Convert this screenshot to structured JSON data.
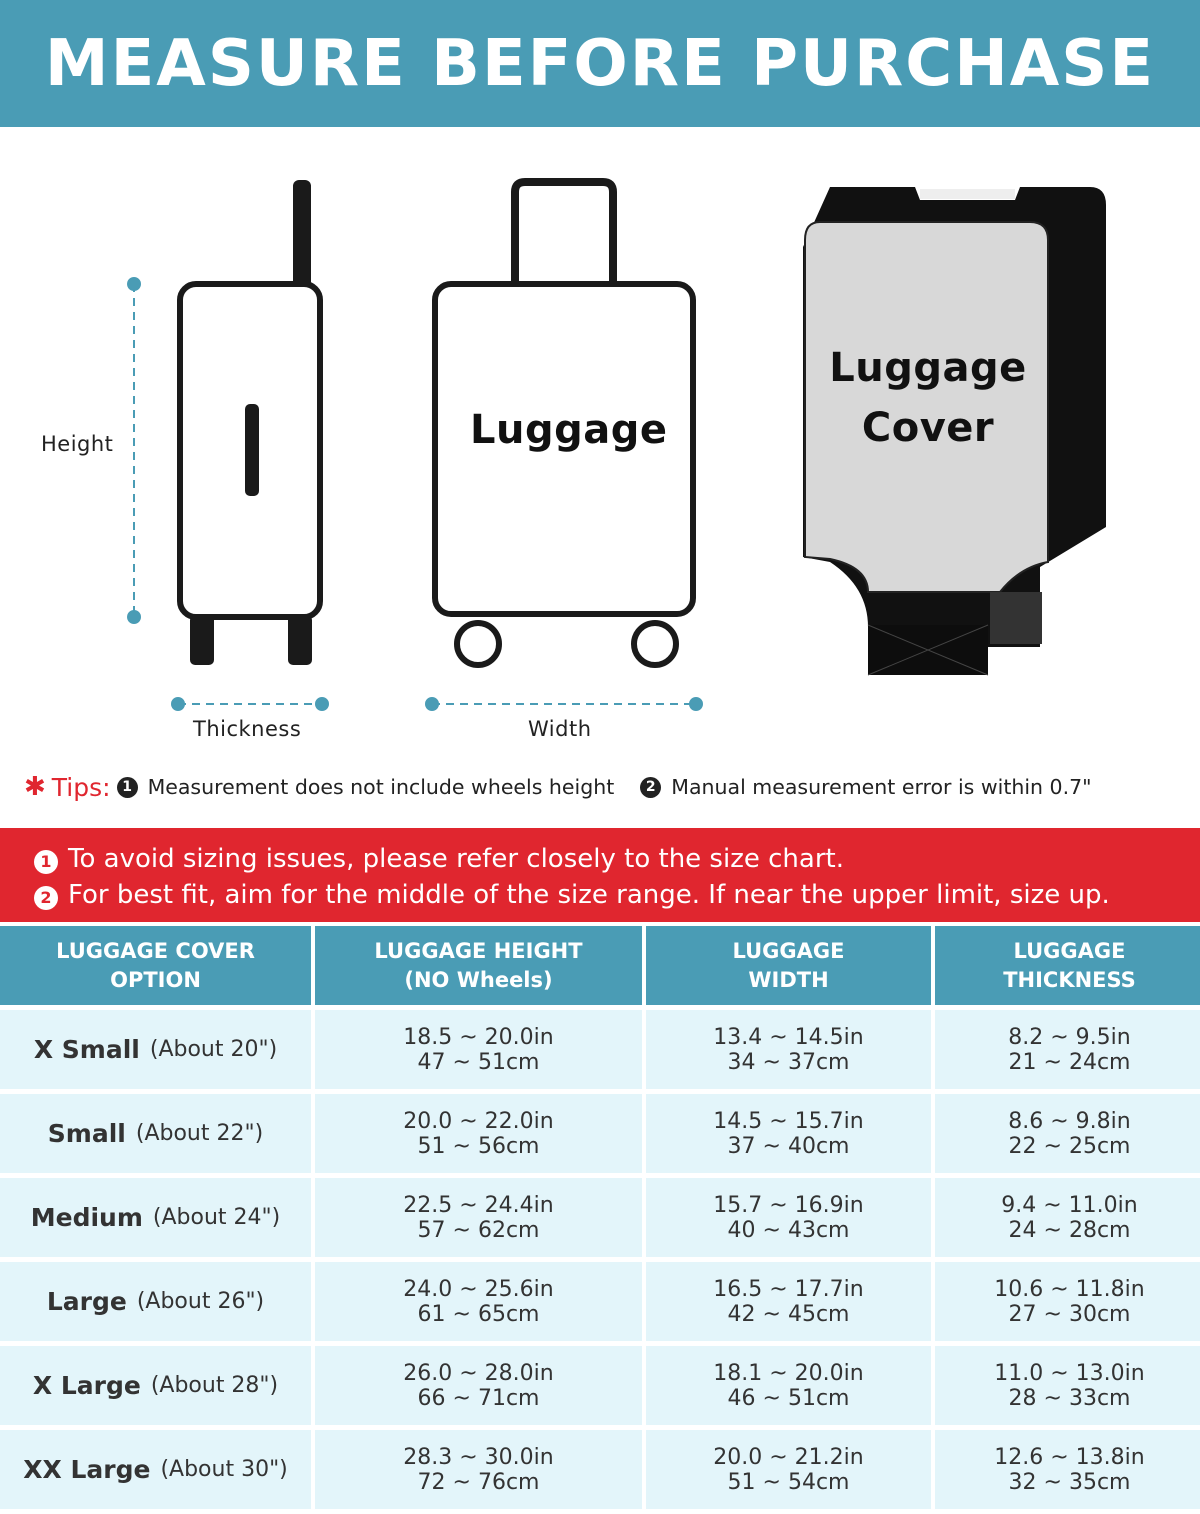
{
  "title": "MEASURE BEFORE PURCHASE",
  "illustration": {
    "height_label": "Height",
    "thickness_label": "Thickness",
    "width_label": "Width",
    "luggage_label": "Luggage",
    "cover_label_1": "Luggage",
    "cover_label_2": "Cover",
    "accent_color": "#4a9cb5"
  },
  "tips": {
    "prefix": "Tips:",
    "tip1": "Measurement does not include wheels height",
    "tip2": "Manual measurement error is within 0.7\""
  },
  "notice": {
    "color": "#e0262f",
    "line1": "To avoid sizing issues, please refer closely to the size chart.",
    "line2": "For best fit, aim for the middle of the size range. If near the upper limit, size up."
  },
  "table": {
    "headers": [
      [
        "LUGGAGE COVER",
        "OPTION"
      ],
      [
        "LUGGAGE HEIGHT",
        "(NO Wheels)"
      ],
      [
        "LUGGAGE",
        "WIDTH"
      ],
      [
        "LUGGAGE",
        "THICKNESS"
      ]
    ],
    "rows": [
      {
        "size": "X Small",
        "about": "(About 20\")",
        "height": [
          "18.5 ~ 20.0in",
          "47 ~ 51cm"
        ],
        "width": [
          "13.4 ~ 14.5in",
          "34 ~ 37cm"
        ],
        "thickness": [
          "8.2 ~ 9.5in",
          "21 ~ 24cm"
        ]
      },
      {
        "size": "Small",
        "about": "(About 22\")",
        "height": [
          "20.0 ~ 22.0in",
          "51 ~ 56cm"
        ],
        "width": [
          "14.5 ~ 15.7in",
          "37 ~ 40cm"
        ],
        "thickness": [
          "8.6 ~ 9.8in",
          "22 ~ 25cm"
        ]
      },
      {
        "size": "Medium",
        "about": "(About 24\")",
        "height": [
          "22.5 ~ 24.4in",
          "57 ~ 62cm"
        ],
        "width": [
          "15.7 ~ 16.9in",
          "40 ~ 43cm"
        ],
        "thickness": [
          "9.4 ~ 11.0in",
          "24 ~ 28cm"
        ]
      },
      {
        "size": "Large",
        "about": "(About 26\")",
        "height": [
          "24.0 ~ 25.6in",
          "61 ~ 65cm"
        ],
        "width": [
          "16.5 ~ 17.7in",
          "42 ~ 45cm"
        ],
        "thickness": [
          "10.6 ~ 11.8in",
          "27 ~ 30cm"
        ]
      },
      {
        "size": "X Large",
        "about": "(About 28\")",
        "height": [
          "26.0 ~ 28.0in",
          "66 ~ 71cm"
        ],
        "width": [
          "18.1 ~ 20.0in",
          "46 ~ 51cm"
        ],
        "thickness": [
          "11.0 ~ 13.0in",
          "28 ~ 33cm"
        ]
      },
      {
        "size": "XX Large",
        "about": "(About 30\")",
        "height": [
          "28.3 ~ 30.0in",
          "72 ~ 76cm"
        ],
        "width": [
          "20.0 ~ 21.2in",
          "51 ~ 54cm"
        ],
        "thickness": [
          "12.6 ~ 13.8in",
          "32 ~ 35cm"
        ]
      }
    ]
  }
}
